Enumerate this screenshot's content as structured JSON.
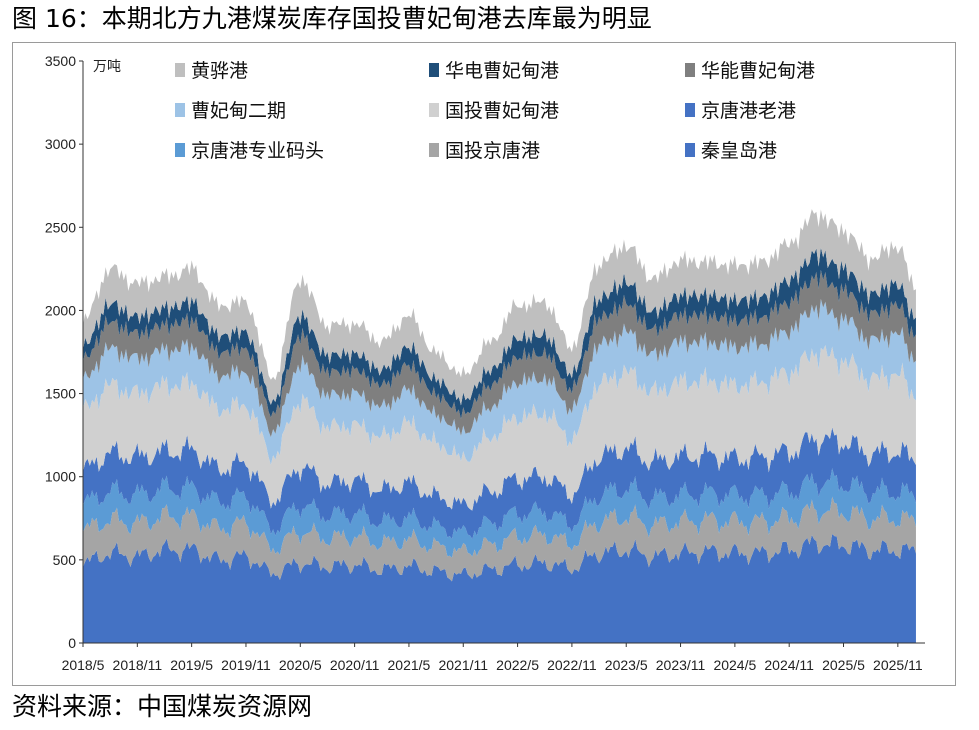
{
  "figure": {
    "title": "图 16：本期北方九港煤炭库存国投曹妃甸港去库最为明显",
    "source": "资料来源：中国煤炭资源网"
  },
  "chart_data": {
    "type": "area",
    "stacked": true,
    "unit": "万吨",
    "ylim": [
      0,
      3500
    ],
    "yticks": [
      "0",
      "500",
      "1000",
      "1500",
      "2000",
      "2500",
      "3000",
      "3500"
    ],
    "xlim": [
      "2018-05",
      "2026-02"
    ],
    "xticks": [
      "2018/5",
      "2018/11",
      "2019/5",
      "2019/11",
      "2020/5",
      "2020/11",
      "2021/5",
      "2021/11",
      "2022/5",
      "2022/11",
      "2023/5",
      "2023/11",
      "2024/5",
      "2024/11",
      "2025/5",
      "2025/11"
    ],
    "legend_position": "top-inside",
    "grid": false,
    "x": [
      "2018-05",
      "2018-08",
      "2018-11",
      "2019-02",
      "2019-05",
      "2019-08",
      "2019-11",
      "2020-02",
      "2020-05",
      "2020-08",
      "2020-11",
      "2021-02",
      "2021-05",
      "2021-08",
      "2021-11",
      "2022-02",
      "2022-05",
      "2022-08",
      "2022-11",
      "2023-02",
      "2023-05",
      "2023-08",
      "2023-11",
      "2024-02",
      "2024-05",
      "2024-08",
      "2024-11",
      "2025-02",
      "2025-05",
      "2025-08",
      "2025-11",
      "2026-01"
    ],
    "series": [
      {
        "name": "秦皇岛港",
        "color": "#4472c4",
        "values": [
          480,
          540,
          520,
          560,
          560,
          500,
          520,
          420,
          480,
          460,
          470,
          440,
          460,
          430,
          410,
          440,
          470,
          480,
          450,
          540,
          560,
          520,
          540,
          550,
          540,
          540,
          560,
          600,
          590,
          560,
          560,
          550
        ]
      },
      {
        "name": "国投京唐港",
        "color": "#a5a5a5",
        "values": [
          200,
          200,
          200,
          200,
          200,
          190,
          200,
          150,
          190,
          170,
          170,
          160,
          160,
          150,
          140,
          150,
          170,
          170,
          150,
          190,
          200,
          190,
          190,
          190,
          190,
          190,
          190,
          200,
          200,
          190,
          190,
          180
        ]
      },
      {
        "name": "京唐港专业码头",
        "color": "#5b9bd5",
        "values": [
          160,
          170,
          170,
          170,
          170,
          160,
          160,
          120,
          160,
          140,
          140,
          130,
          130,
          120,
          110,
          130,
          140,
          140,
          120,
          160,
          170,
          160,
          160,
          160,
          160,
          160,
          160,
          170,
          170,
          160,
          160,
          150
        ]
      },
      {
        "name": "京唐港老港",
        "color": "#4472c4",
        "values": [
          200,
          230,
          230,
          220,
          230,
          200,
          200,
          170,
          230,
          190,
          200,
          190,
          210,
          180,
          170,
          190,
          210,
          210,
          180,
          230,
          240,
          220,
          230,
          230,
          220,
          230,
          240,
          260,
          250,
          230,
          240,
          220
        ]
      },
      {
        "name": "国投曹妃甸港",
        "color": "#d0d0d0",
        "values": [
          360,
          410,
          380,
          400,
          400,
          360,
          350,
          260,
          400,
          340,
          330,
          320,
          360,
          320,
          280,
          330,
          370,
          380,
          330,
          440,
          460,
          420,
          450,
          450,
          440,
          450,
          480,
          520,
          490,
          450,
          470,
          380
        ]
      },
      {
        "name": "曹妃甸二期",
        "color": "#9dc3e6",
        "values": [
          180,
          220,
          210,
          210,
          220,
          200,
          200,
          150,
          220,
          190,
          190,
          180,
          200,
          170,
          160,
          180,
          210,
          210,
          180,
          230,
          240,
          220,
          240,
          230,
          230,
          230,
          250,
          270,
          250,
          230,
          240,
          220
        ]
      },
      {
        "name": "华能曹妃甸港",
        "color": "#7f7f7f",
        "values": [
          120,
          160,
          150,
          150,
          160,
          140,
          140,
          110,
          170,
          140,
          140,
          130,
          150,
          120,
          110,
          130,
          150,
          150,
          120,
          160,
          170,
          150,
          160,
          160,
          160,
          160,
          170,
          180,
          170,
          160,
          170,
          140
        ]
      },
      {
        "name": "华电曹妃甸港",
        "color": "#1f4e79",
        "values": [
          80,
          110,
          100,
          100,
          110,
          100,
          100,
          70,
          120,
          100,
          100,
          90,
          110,
          90,
          80,
          90,
          110,
          110,
          90,
          120,
          130,
          110,
          120,
          120,
          120,
          120,
          130,
          140,
          130,
          120,
          130,
          100
        ]
      },
      {
        "name": "黄骅港",
        "color": "#bfbfbf",
        "values": [
          150,
          210,
          200,
          190,
          200,
          180,
          180,
          140,
          220,
          180,
          180,
          170,
          190,
          160,
          150,
          170,
          200,
          200,
          160,
          210,
          220,
          200,
          210,
          200,
          210,
          210,
          220,
          240,
          230,
          210,
          230,
          180
        ]
      }
    ]
  }
}
